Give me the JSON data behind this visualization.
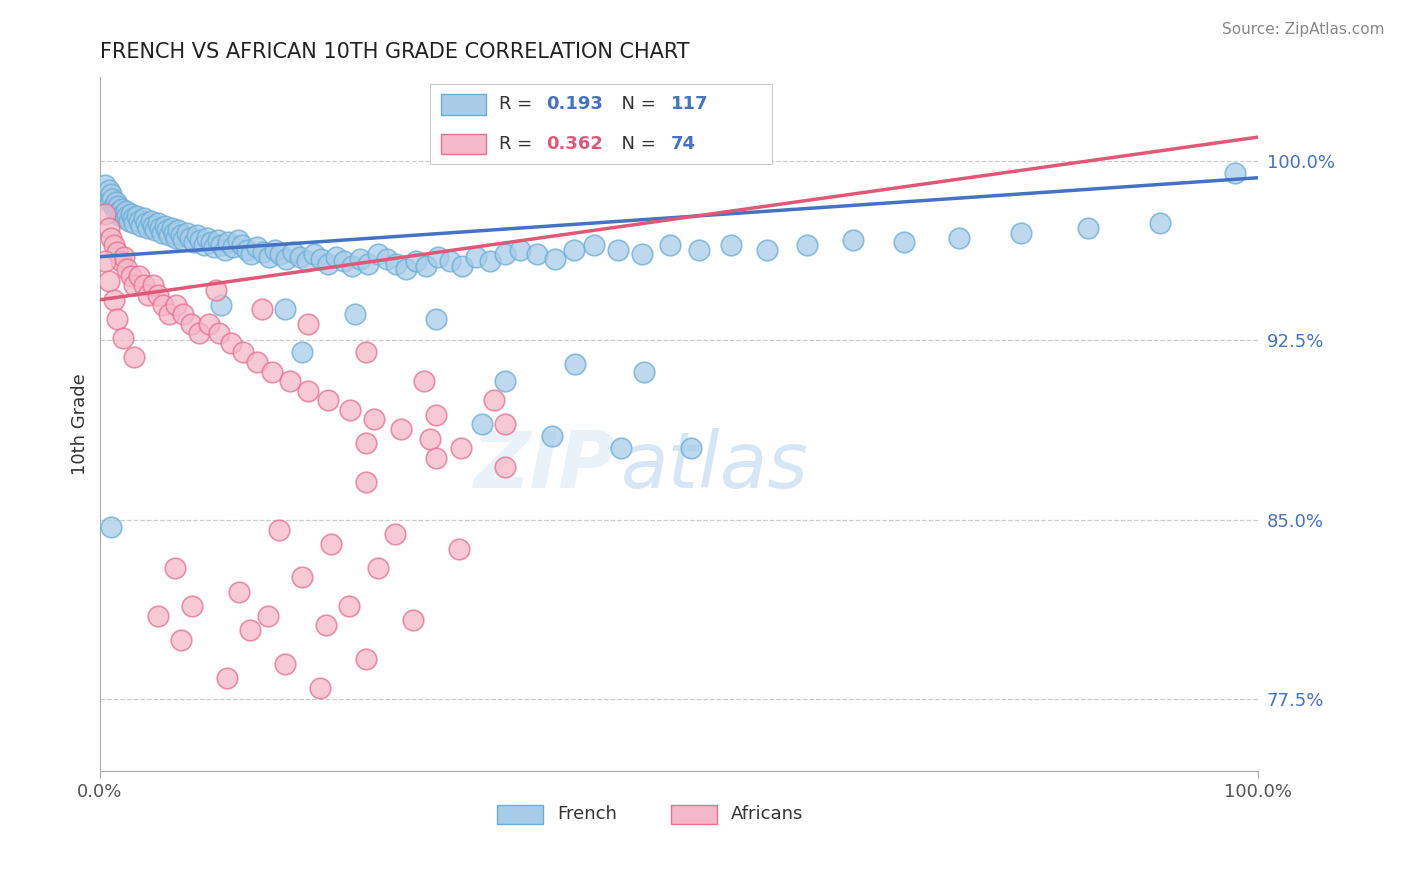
{
  "title": "FRENCH VS AFRICAN 10TH GRADE CORRELATION CHART",
  "source_text": "Source: ZipAtlas.com",
  "ylabel": "10th Grade",
  "xlim": [
    0.0,
    1.0
  ],
  "ylim": [
    0.745,
    1.035
  ],
  "yticks": [
    0.775,
    0.85,
    0.925,
    1.0
  ],
  "ytick_labels": [
    "77.5%",
    "85.0%",
    "92.5%",
    "100.0%"
  ],
  "xtick_labels": [
    "0.0%",
    "100.0%"
  ],
  "french_R": "0.193",
  "french_N": "117",
  "african_R": "0.362",
  "african_N": "74",
  "french_color": "#a8cce8",
  "african_color": "#f4b8c8",
  "french_edge_color": "#6aaed6",
  "african_edge_color": "#e87090",
  "french_line_color": "#4472c4",
  "african_line_color": "#e05878",
  "legend_french": "French",
  "legend_africans": "Africans",
  "watermark_zip": "ZIP",
  "watermark_atlas": "atlas",
  "french_line_y_start": 0.96,
  "french_line_y_end": 0.993,
  "african_line_y_start": 0.942,
  "african_line_y_end": 1.01,
  "french_pts": [
    [
      0.005,
      0.99
    ],
    [
      0.007,
      0.985
    ],
    [
      0.008,
      0.988
    ],
    [
      0.009,
      0.983
    ],
    [
      0.01,
      0.986
    ],
    [
      0.011,
      0.984
    ],
    [
      0.012,
      0.981
    ],
    [
      0.013,
      0.98
    ],
    [
      0.014,
      0.983
    ],
    [
      0.015,
      0.978
    ],
    [
      0.016,
      0.981
    ],
    [
      0.017,
      0.979
    ],
    [
      0.018,
      0.977
    ],
    [
      0.019,
      0.98
    ],
    [
      0.02,
      0.978
    ],
    [
      0.022,
      0.976
    ],
    [
      0.023,
      0.979
    ],
    [
      0.024,
      0.977
    ],
    [
      0.025,
      0.975
    ],
    [
      0.027,
      0.978
    ],
    [
      0.029,
      0.976
    ],
    [
      0.03,
      0.974
    ],
    [
      0.032,
      0.977
    ],
    [
      0.034,
      0.975
    ],
    [
      0.036,
      0.973
    ],
    [
      0.038,
      0.976
    ],
    [
      0.04,
      0.974
    ],
    [
      0.042,
      0.972
    ],
    [
      0.044,
      0.975
    ],
    [
      0.046,
      0.973
    ],
    [
      0.048,
      0.971
    ],
    [
      0.05,
      0.974
    ],
    [
      0.052,
      0.972
    ],
    [
      0.054,
      0.97
    ],
    [
      0.056,
      0.973
    ],
    [
      0.058,
      0.971
    ],
    [
      0.06,
      0.969
    ],
    [
      0.062,
      0.972
    ],
    [
      0.064,
      0.97
    ],
    [
      0.066,
      0.968
    ],
    [
      0.068,
      0.971
    ],
    [
      0.07,
      0.969
    ],
    [
      0.072,
      0.967
    ],
    [
      0.075,
      0.97
    ],
    [
      0.078,
      0.968
    ],
    [
      0.081,
      0.966
    ],
    [
      0.084,
      0.969
    ],
    [
      0.087,
      0.967
    ],
    [
      0.09,
      0.965
    ],
    [
      0.093,
      0.968
    ],
    [
      0.096,
      0.966
    ],
    [
      0.099,
      0.964
    ],
    [
      0.102,
      0.967
    ],
    [
      0.105,
      0.965
    ],
    [
      0.108,
      0.963
    ],
    [
      0.111,
      0.966
    ],
    [
      0.115,
      0.964
    ],
    [
      0.119,
      0.967
    ],
    [
      0.123,
      0.965
    ],
    [
      0.127,
      0.963
    ],
    [
      0.131,
      0.961
    ],
    [
      0.136,
      0.964
    ],
    [
      0.141,
      0.962
    ],
    [
      0.146,
      0.96
    ],
    [
      0.151,
      0.963
    ],
    [
      0.156,
      0.961
    ],
    [
      0.161,
      0.959
    ],
    [
      0.167,
      0.962
    ],
    [
      0.173,
      0.96
    ],
    [
      0.179,
      0.958
    ],
    [
      0.185,
      0.961
    ],
    [
      0.191,
      0.959
    ],
    [
      0.197,
      0.957
    ],
    [
      0.204,
      0.96
    ],
    [
      0.211,
      0.958
    ],
    [
      0.218,
      0.956
    ],
    [
      0.225,
      0.959
    ],
    [
      0.232,
      0.957
    ],
    [
      0.24,
      0.961
    ],
    [
      0.248,
      0.959
    ],
    [
      0.256,
      0.957
    ],
    [
      0.264,
      0.955
    ],
    [
      0.273,
      0.958
    ],
    [
      0.282,
      0.956
    ],
    [
      0.292,
      0.96
    ],
    [
      0.302,
      0.958
    ],
    [
      0.313,
      0.956
    ],
    [
      0.325,
      0.96
    ],
    [
      0.337,
      0.958
    ],
    [
      0.35,
      0.961
    ],
    [
      0.363,
      0.963
    ],
    [
      0.377,
      0.961
    ],
    [
      0.393,
      0.959
    ],
    [
      0.409,
      0.963
    ],
    [
      0.427,
      0.965
    ],
    [
      0.447,
      0.963
    ],
    [
      0.468,
      0.961
    ],
    [
      0.492,
      0.965
    ],
    [
      0.517,
      0.963
    ],
    [
      0.545,
      0.965
    ],
    [
      0.576,
      0.963
    ],
    [
      0.61,
      0.965
    ],
    [
      0.65,
      0.967
    ],
    [
      0.694,
      0.966
    ],
    [
      0.742,
      0.968
    ],
    [
      0.795,
      0.97
    ],
    [
      0.853,
      0.972
    ],
    [
      0.915,
      0.974
    ],
    [
      0.98,
      0.995
    ],
    [
      0.105,
      0.94
    ],
    [
      0.16,
      0.938
    ],
    [
      0.22,
      0.936
    ],
    [
      0.29,
      0.934
    ],
    [
      0.175,
      0.92
    ],
    [
      0.35,
      0.908
    ],
    [
      0.41,
      0.915
    ],
    [
      0.47,
      0.912
    ],
    [
      0.33,
      0.89
    ],
    [
      0.39,
      0.885
    ],
    [
      0.45,
      0.88
    ],
    [
      0.51,
      0.88
    ],
    [
      0.01,
      0.847
    ]
  ],
  "african_pts": [
    [
      0.005,
      0.978
    ],
    [
      0.008,
      0.972
    ],
    [
      0.01,
      0.968
    ],
    [
      0.012,
      0.965
    ],
    [
      0.015,
      0.962
    ],
    [
      0.018,
      0.958
    ],
    [
      0.021,
      0.96
    ],
    [
      0.024,
      0.955
    ],
    [
      0.027,
      0.952
    ],
    [
      0.03,
      0.948
    ],
    [
      0.034,
      0.952
    ],
    [
      0.038,
      0.948
    ],
    [
      0.042,
      0.944
    ],
    [
      0.046,
      0.948
    ],
    [
      0.05,
      0.944
    ],
    [
      0.055,
      0.94
    ],
    [
      0.06,
      0.936
    ],
    [
      0.066,
      0.94
    ],
    [
      0.072,
      0.936
    ],
    [
      0.079,
      0.932
    ],
    [
      0.086,
      0.928
    ],
    [
      0.094,
      0.932
    ],
    [
      0.103,
      0.928
    ],
    [
      0.113,
      0.924
    ],
    [
      0.124,
      0.92
    ],
    [
      0.136,
      0.916
    ],
    [
      0.149,
      0.912
    ],
    [
      0.164,
      0.908
    ],
    [
      0.18,
      0.904
    ],
    [
      0.197,
      0.9
    ],
    [
      0.216,
      0.896
    ],
    [
      0.237,
      0.892
    ],
    [
      0.26,
      0.888
    ],
    [
      0.285,
      0.884
    ],
    [
      0.312,
      0.88
    ],
    [
      0.1,
      0.946
    ],
    [
      0.14,
      0.938
    ],
    [
      0.18,
      0.932
    ],
    [
      0.23,
      0.92
    ],
    [
      0.28,
      0.908
    ],
    [
      0.34,
      0.9
    ],
    [
      0.29,
      0.894
    ],
    [
      0.35,
      0.89
    ],
    [
      0.23,
      0.882
    ],
    [
      0.29,
      0.876
    ],
    [
      0.35,
      0.872
    ],
    [
      0.23,
      0.866
    ],
    [
      0.155,
      0.846
    ],
    [
      0.2,
      0.84
    ],
    [
      0.255,
      0.844
    ],
    [
      0.31,
      0.838
    ],
    [
      0.175,
      0.826
    ],
    [
      0.24,
      0.83
    ],
    [
      0.065,
      0.83
    ],
    [
      0.12,
      0.82
    ],
    [
      0.08,
      0.814
    ],
    [
      0.145,
      0.81
    ],
    [
      0.215,
      0.814
    ],
    [
      0.07,
      0.8
    ],
    [
      0.13,
      0.804
    ],
    [
      0.195,
      0.806
    ],
    [
      0.27,
      0.808
    ],
    [
      0.16,
      0.79
    ],
    [
      0.23,
      0.792
    ],
    [
      0.05,
      0.81
    ],
    [
      0.11,
      0.784
    ],
    [
      0.19,
      0.78
    ],
    [
      0.005,
      0.958
    ],
    [
      0.008,
      0.95
    ],
    [
      0.012,
      0.942
    ],
    [
      0.015,
      0.934
    ],
    [
      0.02,
      0.926
    ],
    [
      0.03,
      0.918
    ]
  ]
}
